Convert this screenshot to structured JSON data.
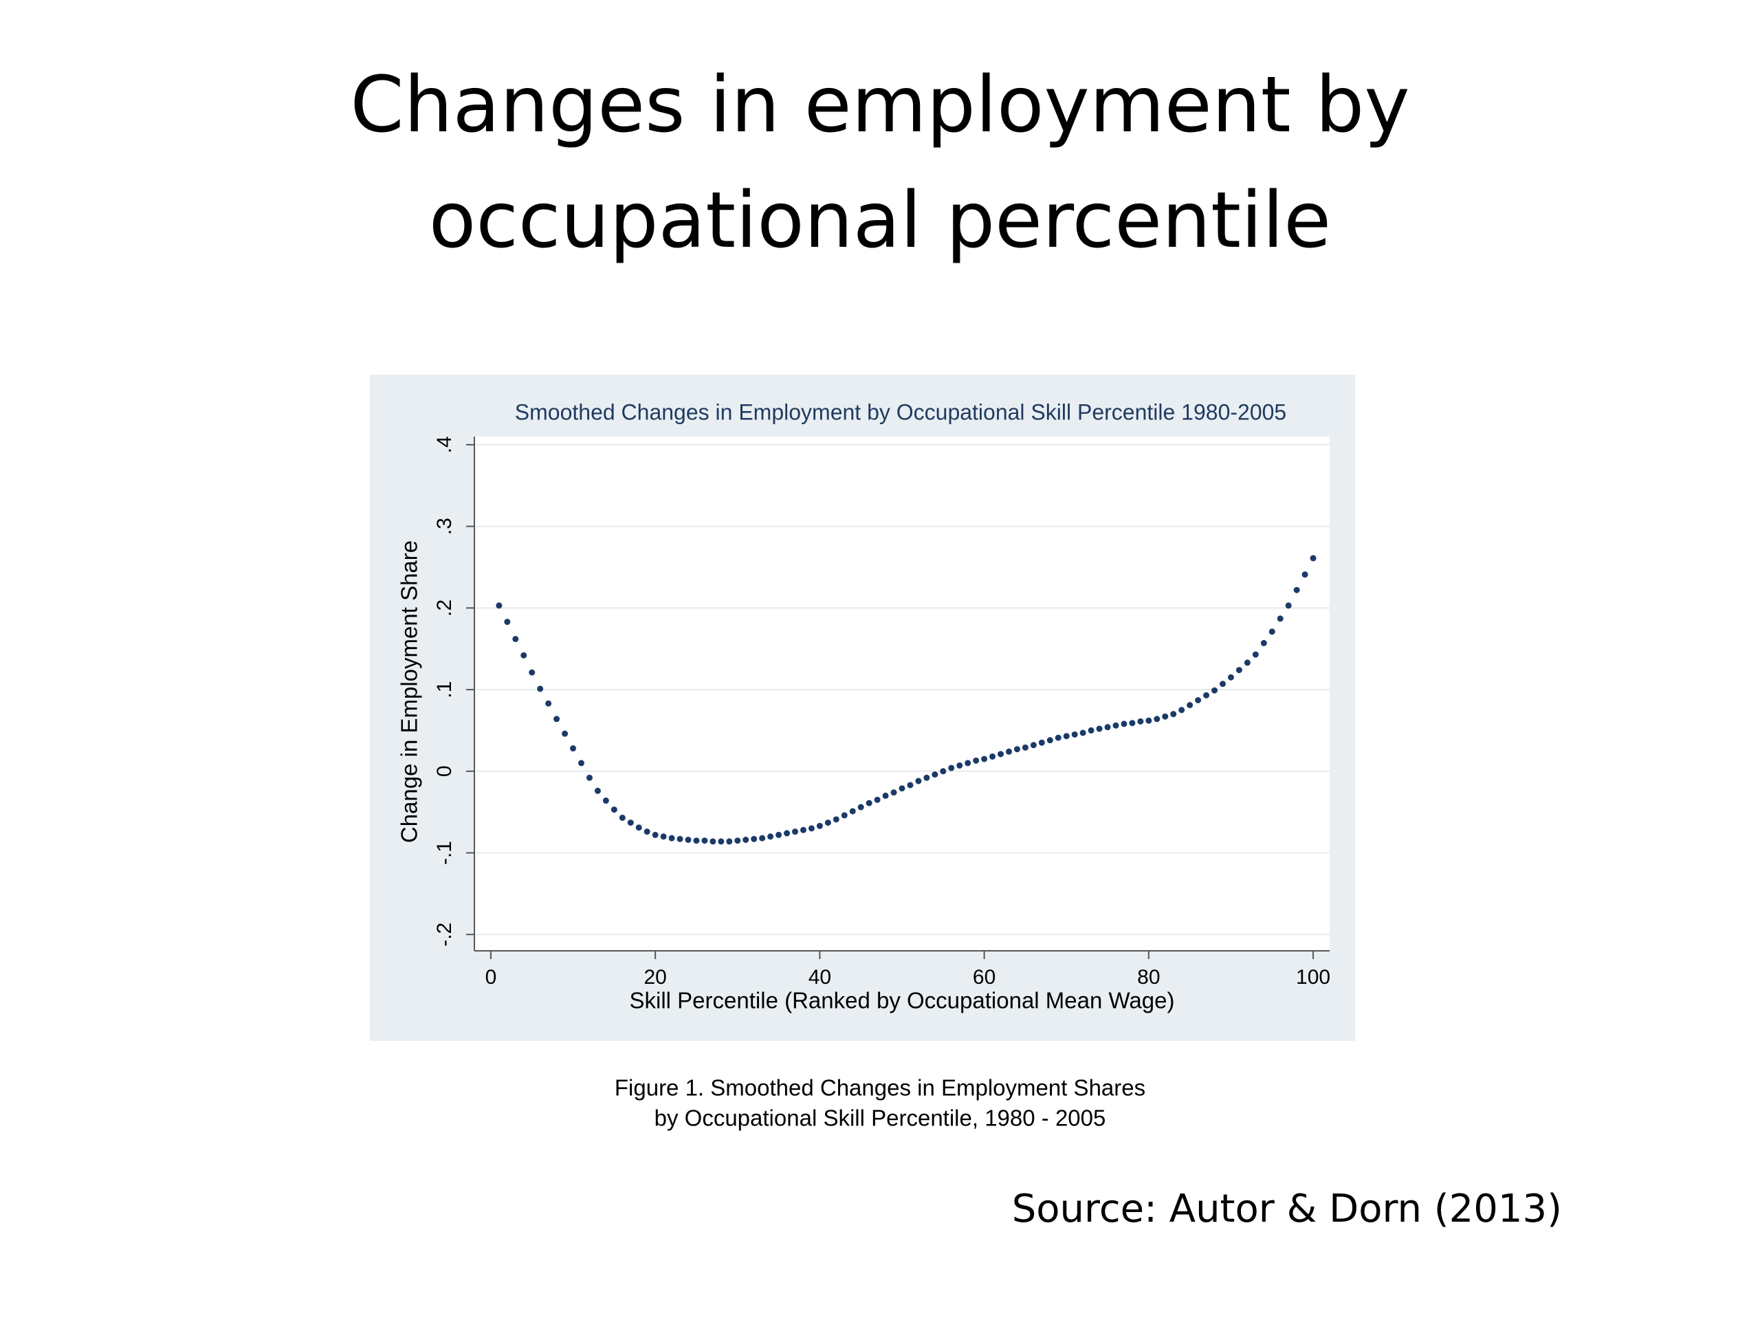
{
  "title": [
    "Changes in employment by",
    "occupational percentile"
  ],
  "chart_data": {
    "type": "scatter",
    "title": "Smoothed Changes in Employment by Occupational Skill Percentile 1980-2005",
    "xlabel": "Skill Percentile (Ranked by Occupational Mean Wage)",
    "ylabel": "Change in Employment Share",
    "color": "#1b3a68",
    "grid": true,
    "xlim": [
      -2,
      102
    ],
    "ylim": [
      -0.22,
      0.41
    ],
    "xticks": [
      0,
      20,
      40,
      60,
      80,
      100
    ],
    "yticks": [
      {
        "value": -0.2,
        "label": "-.2"
      },
      {
        "value": -0.1,
        "label": "-.1"
      },
      0,
      {
        "value": 0.1,
        "label": ".1"
      },
      {
        "value": 0.2,
        "label": ".2"
      },
      {
        "value": 0.3,
        "label": ".3"
      },
      {
        "value": 0.4,
        "label": ".4"
      }
    ],
    "x": [
      1,
      2,
      3,
      4,
      5,
      6,
      7,
      8,
      9,
      10,
      11,
      12,
      13,
      14,
      15,
      16,
      17,
      18,
      19,
      20,
      21,
      22,
      23,
      24,
      25,
      26,
      27,
      28,
      29,
      30,
      31,
      32,
      33,
      34,
      35,
      36,
      37,
      38,
      39,
      40,
      41,
      42,
      43,
      44,
      45,
      46,
      47,
      48,
      49,
      50,
      51,
      52,
      53,
      54,
      55,
      56,
      57,
      58,
      59,
      60,
      61,
      62,
      63,
      64,
      65,
      66,
      67,
      68,
      69,
      70,
      71,
      72,
      73,
      74,
      75,
      76,
      77,
      78,
      79,
      80,
      81,
      82,
      83,
      84,
      85,
      86,
      87,
      88,
      89,
      90,
      91,
      92,
      93,
      94,
      95,
      96,
      97,
      98,
      99,
      100
    ],
    "values": [
      0.203,
      0.183,
      0.162,
      0.142,
      0.121,
      0.101,
      0.083,
      0.064,
      0.046,
      0.028,
      0.01,
      -0.008,
      -0.024,
      -0.036,
      -0.047,
      -0.057,
      -0.063,
      -0.069,
      -0.074,
      -0.078,
      -0.08,
      -0.082,
      -0.083,
      -0.084,
      -0.085,
      -0.085,
      -0.086,
      -0.086,
      -0.086,
      -0.085,
      -0.084,
      -0.083,
      -0.082,
      -0.08,
      -0.078,
      -0.076,
      -0.074,
      -0.072,
      -0.07,
      -0.067,
      -0.063,
      -0.059,
      -0.054,
      -0.049,
      -0.044,
      -0.039,
      -0.035,
      -0.03,
      -0.026,
      -0.021,
      -0.017,
      -0.012,
      -0.008,
      -0.004,
      0.0,
      0.004,
      0.007,
      0.01,
      0.013,
      0.015,
      0.018,
      0.021,
      0.024,
      0.027,
      0.029,
      0.032,
      0.035,
      0.038,
      0.041,
      0.043,
      0.045,
      0.047,
      0.05,
      0.052,
      0.054,
      0.056,
      0.058,
      0.059,
      0.061,
      0.062,
      0.064,
      0.067,
      0.07,
      0.075,
      0.081,
      0.087,
      0.093,
      0.099,
      0.107,
      0.115,
      0.124,
      0.133,
      0.143,
      0.157,
      0.171,
      0.187,
      0.203,
      0.222,
      0.241,
      0.261
    ]
  },
  "caption": [
    "Figure 1. Smoothed Changes in Employment Shares",
    "by Occupational Skill Percentile, 1980 - 2005"
  ],
  "source": "Source:  Autor & Dorn (2013)"
}
